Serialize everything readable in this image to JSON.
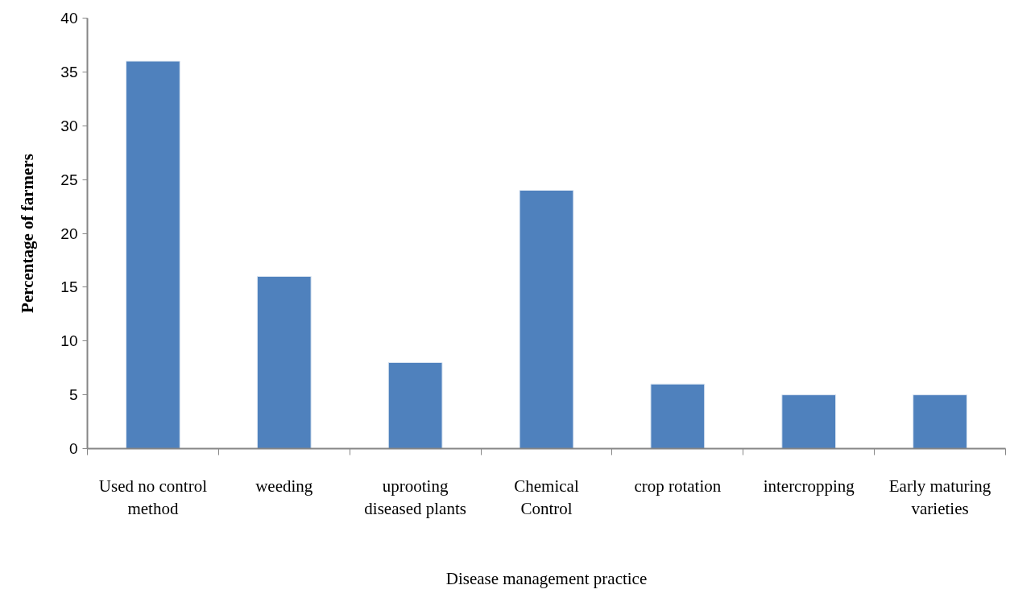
{
  "chart_data": {
    "type": "bar",
    "categories": [
      "Used no control method",
      "weeding",
      "uprooting diseased plants",
      "Chemical Control",
      "crop rotation",
      "intercropping",
      "Early maturing varieties"
    ],
    "values": [
      36,
      16,
      8,
      24,
      6,
      5,
      5
    ],
    "color": "#4f81bd",
    "xlabel": "Disease management practice",
    "ylabel": "Percentage of farmers",
    "ylim": [
      0,
      40
    ],
    "yticks": [
      0,
      5,
      10,
      15,
      20,
      25,
      30,
      35,
      40
    ],
    "grid": false
  }
}
